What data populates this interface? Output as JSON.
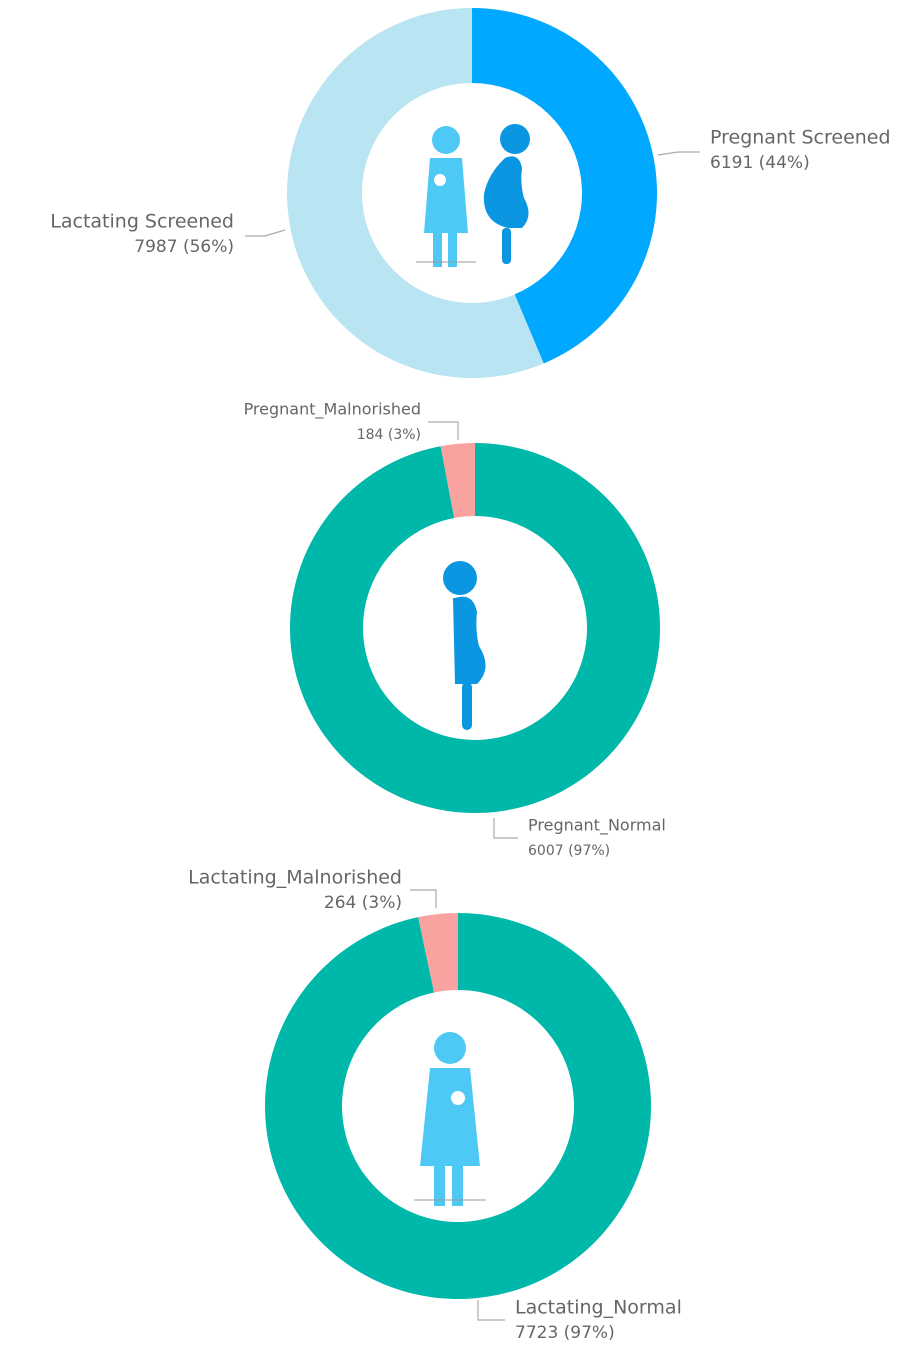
{
  "chart_data": [
    {
      "type": "pie",
      "categories": [
        "Pregnant Screened",
        "Lactating Screened"
      ],
      "values": [
        6191,
        7987
      ],
      "value_labels": [
        "6191 (44%)",
        "7987 (56%)"
      ],
      "colors": [
        "#00a8ff",
        "#b9e4f2"
      ]
    },
    {
      "type": "pie",
      "categories": [
        "Pregnant_Normal",
        "Pregnant_Malnorished"
      ],
      "values": [
        6007,
        184
      ],
      "value_labels": [
        "6007 (97%)",
        "184 (3%)"
      ],
      "colors": [
        "#00b8a9",
        "#f8a3a0"
      ]
    },
    {
      "type": "pie",
      "categories": [
        "Lactating_Normal",
        "Lactating_Malnorished"
      ],
      "values": [
        7723,
        264
      ],
      "value_labels": [
        "7723 (97%)",
        "264 (3%)"
      ],
      "colors": [
        "#00b8a9",
        "#f8a3a0"
      ]
    }
  ]
}
